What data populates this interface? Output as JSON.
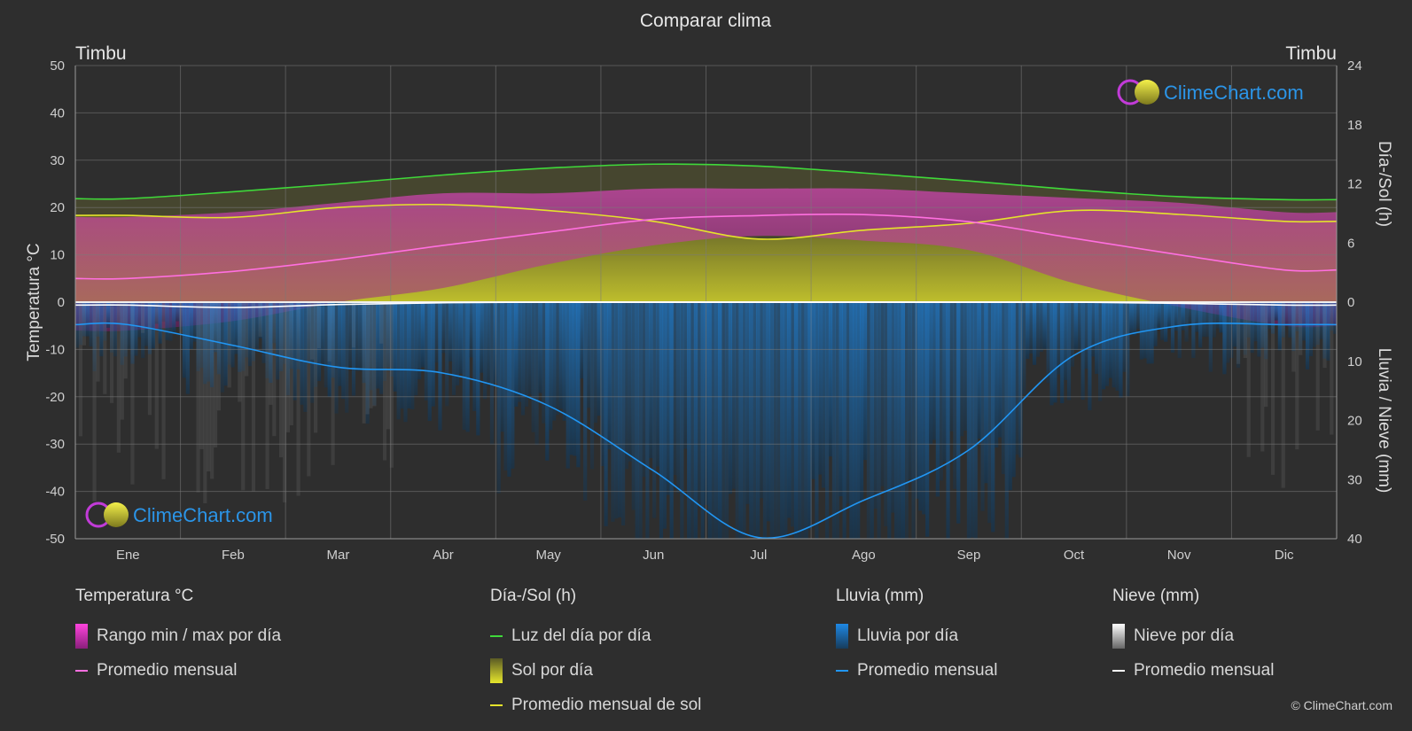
{
  "page": {
    "title": "Comparar clima",
    "city_left": "Timbu",
    "city_right": "Timbu",
    "brand": "ClimeChart.com",
    "copyright": "© ClimeChart.com"
  },
  "chart_data": {
    "type": "area",
    "months": [
      "Ene",
      "Feb",
      "Mar",
      "Abr",
      "May",
      "Jun",
      "Jul",
      "Ago",
      "Sep",
      "Oct",
      "Nov",
      "Dic"
    ],
    "y_left": {
      "label": "Temperatura °C",
      "range": [
        -50,
        50
      ],
      "ticks": [
        50,
        40,
        30,
        20,
        10,
        0,
        -10,
        -20,
        -30,
        -40,
        -50
      ]
    },
    "y_right_top": {
      "label": "Día-/Sol (h)",
      "range": [
        0,
        24
      ],
      "ticks": [
        24,
        18,
        12,
        6,
        0
      ]
    },
    "y_right_bottom": {
      "label": "Lluvia / Nieve (mm)",
      "range": [
        0,
        40
      ],
      "ticks": [
        10,
        20,
        30,
        40
      ]
    },
    "grid": true,
    "series": {
      "daylight_hours": [
        10.5,
        11.2,
        12.0,
        12.9,
        13.6,
        14.0,
        13.8,
        13.1,
        12.3,
        11.4,
        10.7,
        10.4
      ],
      "sunshine_hours": [
        8.8,
        8.6,
        9.6,
        9.9,
        9.3,
        8.2,
        6.4,
        7.3,
        8.0,
        9.3,
        8.9,
        8.2
      ],
      "temp_mean": [
        5.0,
        6.5,
        9.0,
        12.0,
        14.8,
        17.5,
        18.3,
        18.5,
        17.0,
        13.5,
        10.0,
        6.8
      ],
      "temp_max": [
        18,
        19,
        21,
        23,
        23,
        24,
        24,
        24,
        23,
        22,
        21,
        19
      ],
      "temp_min": [
        -6,
        -4,
        0,
        3,
        8,
        12,
        14,
        13,
        11,
        4,
        -1,
        -5
      ],
      "rain_mean_mm": [
        3.8,
        7.3,
        11.0,
        12.0,
        17.5,
        28.5,
        39.8,
        33.5,
        25.0,
        9.0,
        4.0,
        3.8
      ],
      "snow_mean_mm": [
        0.5,
        0.9,
        0.4,
        0.1,
        0.0,
        0.0,
        0.0,
        0.0,
        0.0,
        0.0,
        0.2,
        0.5
      ]
    }
  },
  "legend": [
    {
      "header": "Temperatura °C",
      "items": [
        {
          "label": "Rango min / max por día",
          "kind": "box",
          "color": "#e025d0"
        },
        {
          "label": "Promedio mensual",
          "kind": "line",
          "color": "#ff6fe0"
        }
      ]
    },
    {
      "header": "Día-/Sol (h)",
      "items": [
        {
          "label": "Luz del día por día",
          "kind": "line",
          "color": "#3fd93a"
        },
        {
          "label": "Sol por día",
          "kind": "box",
          "color": "#c8c824"
        },
        {
          "label": "Promedio mensual de sol",
          "kind": "line",
          "color": "#e5e32b"
        }
      ]
    },
    {
      "header": "Lluvia (mm)",
      "items": [
        {
          "label": "Lluvia por día",
          "kind": "box",
          "color": "#1e88e5"
        },
        {
          "label": "Promedio mensual",
          "kind": "line",
          "color": "#2196f3"
        }
      ]
    },
    {
      "header": "Nieve (mm)",
      "items": [
        {
          "label": "Nieve por día",
          "kind": "box",
          "color": "#dddddd"
        },
        {
          "label": "Promedio mensual",
          "kind": "line",
          "color": "#ffffff"
        }
      ]
    }
  ]
}
